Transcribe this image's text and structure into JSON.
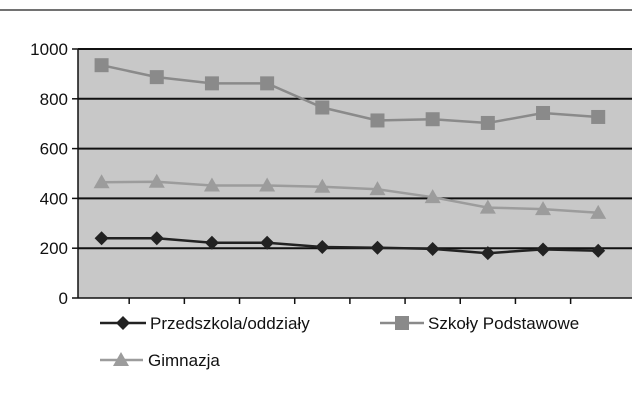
{
  "chart_data": {
    "type": "line",
    "title": "",
    "xlabel": "",
    "ylabel": "",
    "ylim": [
      0,
      1000
    ],
    "yticks": [
      0,
      200,
      400,
      600,
      800,
      1000
    ],
    "grid": "horizontal",
    "legend_position": "bottom",
    "plot_background": "#c8c8c8",
    "series": [
      {
        "name": "Przedszkola/oddziały",
        "marker": "diamond",
        "color": "#222222",
        "values": [
          240,
          240,
          222,
          222,
          205,
          202,
          197,
          180,
          195,
          190
        ]
      },
      {
        "name": "Szkoły Podstawowe",
        "marker": "square",
        "color": "#8a8a8a",
        "values": [
          935,
          887,
          862,
          862,
          765,
          713,
          718,
          703,
          743,
          727
        ]
      },
      {
        "name": "Gimnazja",
        "marker": "triangle",
        "color": "#9c9c9c",
        "values": [
          465,
          467,
          452,
          452,
          447,
          437,
          405,
          363,
          357,
          342
        ]
      }
    ]
  }
}
